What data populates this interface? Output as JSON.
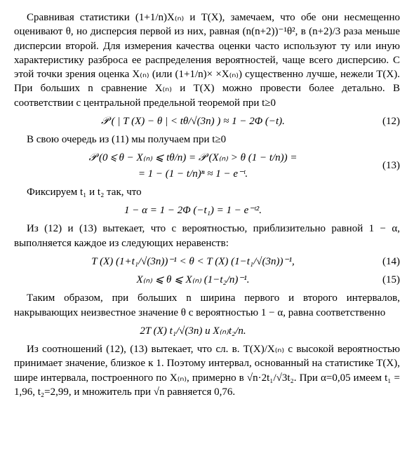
{
  "para1": "Сравнивая статистики (1+1/n)X₍ₙ₎ и T(X), замечаем, что обе они несмещенно оценивают θ, но дисперсия первой из них, равная (n(n+2))⁻¹θ², в (n+2)/3 раза меньше дисперсии второй. Для измерения качества оценки часто используют ту или иную характеристику разброса ее распределения вероятностей, чаще всего дисперсию. С этой точки зрения оценка X₍ₙ₎ (или (1+1/n)× ×X₍ₙ₎) существенно лучше, нежели T(X). При больших n сравнение X₍ₙ₎ и T(X) можно провести более детально. В соответствии с центральной предельной теоремой при t≥0",
  "eq12": "𝒫 ( | T (X) − θ | < tθ/√(3n) ) ≈ 1 − 2Φ (−t).",
  "eq12num": "(12)",
  "para2": "В свою очередь из (11) мы получаем при t≥0",
  "eq13_line1": "𝒫 (0 ⩽ θ − X₍ₙ₎ ⩽ tθ/n) = 𝒫 (X₍ₙ₎ > θ (1 − t/n)) =",
  "eq13_line2": "= 1 − (1 − t/n)ⁿ ≈ 1 − e⁻ᵗ.",
  "eq13num": "(13)",
  "para3": "Фиксируем t₁ и t₂ так, что",
  "eq_alpha": "1 − α = 1 − 2Φ (−t₁) = 1 − e⁻ᵗ².",
  "para4": "Из (12) и (13) вытекает, что с вероятностью, приблизительно равной 1 − α, выполняется каждое из следующих неравенств:",
  "eq14": "T (X) (1+t₁/√(3n))⁻¹ < θ < T (X) (1−t₁/√(3n))⁻¹,",
  "eq14num": "(14)",
  "eq15": "X₍ₙ₎ ⩽ θ ⩽ X₍ₙ₎ (1−t₂/n)⁻¹.",
  "eq15num": "(15)",
  "para5": "Таким образом, при больших n ширина первого и второго интервалов, накрывающих неизвестное значение θ с вероятностью 1 − α, равна соответственно",
  "eq_width": "2T (X) t₁/√(3n) и X₍ₙ₎t₂/n.",
  "para6": "Из соотношений (12), (13) вытекает, что сл. в. T(X)/X₍ₙ₎ с высокой вероятностью принимает значение, близкое к 1. Поэтому интервал, основанный на статистике T(X), шире интервала, построенного по X₍ₙ₎, примерно в √n·2t₁/√3t₂. При α=0,05 имеем t₁ = 1,96, t₂=2,99, и множитель при √n равняется 0,76."
}
